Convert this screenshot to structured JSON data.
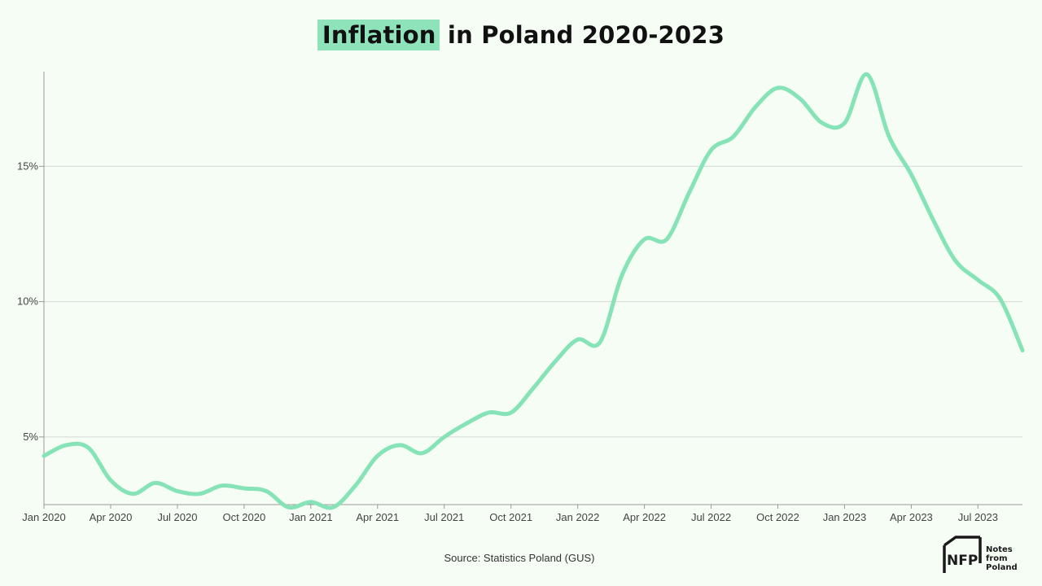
{
  "title": {
    "highlight": "Inflation",
    "rest": " in Poland 2020-2023"
  },
  "source": "Source: Statistics Poland (GUS)",
  "logo": {
    "mark": "NFP",
    "line1": "Notes from",
    "line2": "Poland"
  },
  "colors": {
    "line": "#86e3b7",
    "highlight": "#8ee3bb",
    "background": "#f6fdf5",
    "grid": "#d4d9d6"
  },
  "chart_data": {
    "type": "line",
    "title": "Inflation in Poland 2020-2023",
    "xlabel": "",
    "ylabel": "",
    "ylim": [
      2.5,
      18.5
    ],
    "yticks": [
      5,
      10,
      15
    ],
    "ytick_labels": [
      "5%",
      "10%",
      "15%"
    ],
    "xticks": [
      0,
      3,
      6,
      9,
      12,
      15,
      18,
      21,
      24,
      27,
      30,
      33,
      36,
      39,
      42
    ],
    "xtick_labels": [
      "Jan 2020",
      "Apr 2020",
      "Jul 2020",
      "Oct 2020",
      "Jan 2021",
      "Apr 2021",
      "Jul 2021",
      "Oct 2021",
      "Jan 2022",
      "Apr 2022",
      "Jul 2022",
      "Oct 2022",
      "Jan 2023",
      "Apr 2023",
      "Jul 2023"
    ],
    "grid": "horizontal",
    "x": [
      "Jan 2020",
      "Feb 2020",
      "Mar 2020",
      "Apr 2020",
      "May 2020",
      "Jun 2020",
      "Jul 2020",
      "Aug 2020",
      "Sep 2020",
      "Oct 2020",
      "Nov 2020",
      "Dec 2020",
      "Jan 2021",
      "Feb 2021",
      "Mar 2021",
      "Apr 2021",
      "May 2021",
      "Jun 2021",
      "Jul 2021",
      "Aug 2021",
      "Sep 2021",
      "Oct 2021",
      "Nov 2021",
      "Dec 2021",
      "Jan 2022",
      "Feb 2022",
      "Mar 2022",
      "Apr 2022",
      "May 2022",
      "Jun 2022",
      "Jul 2022",
      "Aug 2022",
      "Sep 2022",
      "Oct 2022",
      "Nov 2022",
      "Dec 2022",
      "Jan 2023",
      "Feb 2023",
      "Mar 2023",
      "Apr 2023",
      "May 2023",
      "Jun 2023",
      "Jul 2023",
      "Aug 2023",
      "Sep 2023"
    ],
    "series": [
      {
        "values": [
          4.3,
          4.7,
          4.6,
          3.4,
          2.9,
          3.3,
          3.0,
          2.9,
          3.2,
          3.1,
          3.0,
          2.4,
          2.6,
          2.4,
          3.2,
          4.3,
          4.7,
          4.4,
          5.0,
          5.5,
          5.9,
          5.9,
          6.8,
          7.8,
          8.6,
          8.5,
          11.0,
          12.3,
          12.3,
          14.0,
          15.6,
          16.1,
          17.2,
          17.9,
          17.5,
          16.6,
          16.6,
          18.4,
          16.1,
          14.7,
          13.0,
          11.5,
          10.8,
          10.1,
          8.2
        ]
      }
    ]
  }
}
